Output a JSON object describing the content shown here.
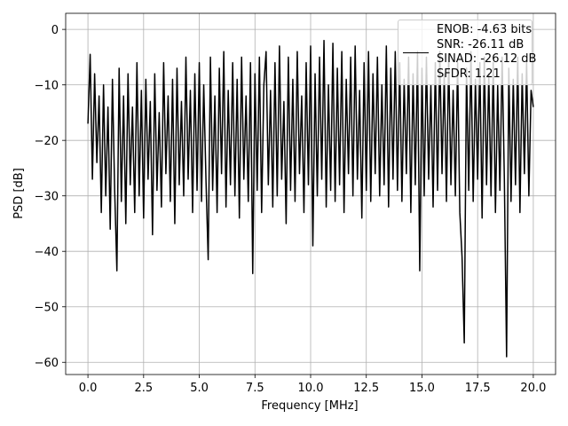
{
  "chart_data": {
    "type": "line",
    "x_label": "Frequency [MHz]",
    "y_label": "PSD [dB]",
    "xlim": [
      -1.0,
      21.0
    ],
    "ylim": [
      -62.2,
      2.9
    ],
    "xticks": [
      {
        "value": 0,
        "label": "0.0"
      },
      {
        "value": 2.5,
        "label": "2.5"
      },
      {
        "value": 5,
        "label": "5.0"
      },
      {
        "value": 7.5,
        "label": "7.5"
      },
      {
        "value": 10,
        "label": "10.0"
      },
      {
        "value": 12.5,
        "label": "12.5"
      },
      {
        "value": 15,
        "label": "15.0"
      },
      {
        "value": 17.5,
        "label": "17.5"
      },
      {
        "value": 20,
        "label": "20.0"
      }
    ],
    "yticks": [
      0,
      {
        "value": -10,
        "label": "−10"
      },
      {
        "value": -20,
        "label": "−20"
      },
      {
        "value": -30,
        "label": "−30"
      },
      {
        "value": -40,
        "label": "−40"
      },
      {
        "value": -50,
        "label": "−50"
      },
      {
        "value": -60,
        "label": "−60"
      }
    ],
    "grid": true,
    "legend": "upper right",
    "x": [
      0,
      0.1,
      0.2,
      0.3,
      0.4,
      0.5,
      0.6,
      0.7,
      0.8,
      0.9,
      1,
      1.1,
      1.2,
      1.3,
      1.4,
      1.5,
      1.6,
      1.7,
      1.8,
      1.9,
      2,
      2.1,
      2.2,
      2.3,
      2.4,
      2.5,
      2.6,
      2.7,
      2.8,
      2.9,
      3,
      3.1,
      3.2,
      3.3,
      3.4,
      3.5,
      3.6,
      3.7,
      3.8,
      3.9,
      4,
      4.1,
      4.2,
      4.3,
      4.4,
      4.5,
      4.6,
      4.7,
      4.8,
      4.9,
      5,
      5.1,
      5.2,
      5.3,
      5.4,
      5.5,
      5.6,
      5.7,
      5.8,
      5.9,
      6,
      6.1,
      6.2,
      6.3,
      6.4,
      6.5,
      6.6,
      6.7,
      6.8,
      6.9,
      7,
      7.1,
      7.2,
      7.3,
      7.4,
      7.5,
      7.6,
      7.7,
      7.8,
      7.9,
      8,
      8.1,
      8.2,
      8.3,
      8.4,
      8.5,
      8.6,
      8.7,
      8.8,
      8.9,
      9,
      9.1,
      9.2,
      9.3,
      9.4,
      9.5,
      9.6,
      9.7,
      9.8,
      9.9,
      10,
      10.1,
      10.2,
      10.3,
      10.4,
      10.5,
      10.6,
      10.7,
      10.8,
      10.9,
      11,
      11.1,
      11.2,
      11.3,
      11.4,
      11.5,
      11.6,
      11.7,
      11.8,
      11.9,
      12,
      12.1,
      12.2,
      12.3,
      12.4,
      12.5,
      12.6,
      12.7,
      12.8,
      12.9,
      13,
      13.1,
      13.2,
      13.3,
      13.4,
      13.5,
      13.6,
      13.7,
      13.8,
      13.9,
      14,
      14.1,
      14.2,
      14.3,
      14.4,
      14.5,
      14.6,
      14.7,
      14.8,
      14.9,
      15,
      15.1,
      15.2,
      15.3,
      15.4,
      15.5,
      15.6,
      15.7,
      15.8,
      15.9,
      16,
      16.1,
      16.2,
      16.3,
      16.4,
      16.5,
      16.6,
      16.7,
      16.8,
      16.9,
      17,
      17.1,
      17.2,
      17.3,
      17.4,
      17.5,
      17.6,
      17.7,
      17.8,
      17.9,
      18,
      18.1,
      18.2,
      18.3,
      18.4,
      18.5,
      18.6,
      18.7,
      18.8,
      18.9,
      19,
      19.1,
      19.2,
      19.3,
      19.4,
      19.5,
      19.6,
      19.7,
      19.8,
      19.9,
      20
    ],
    "series": [
      {
        "name": "ENOB: -4.63 bits\nSNR: -26.11 dB\nSINAD: -26.12 dB\nSFDR: 1.21",
        "color": "#000000",
        "values": [
          -17,
          -4.5,
          -27,
          -8,
          -24,
          -12,
          -33,
          -10,
          -30,
          -14,
          -36,
          -9,
          -29,
          -43.5,
          -7,
          -31,
          -12,
          -35,
          -8,
          -28,
          -14,
          -33,
          -6,
          -30,
          -11,
          -34,
          -9,
          -27,
          -13,
          -37,
          -8,
          -29,
          -15,
          -32,
          -6,
          -26,
          -12,
          -31,
          -9,
          -35,
          -7,
          -28,
          -13,
          -30,
          -5,
          -27,
          -11,
          -33,
          -8,
          -29,
          -6,
          -31,
          -10,
          -27,
          -41.5,
          -5,
          -29,
          -12,
          -33,
          -7,
          -26,
          -4,
          -32,
          -11,
          -28,
          -6,
          -30,
          -9,
          -34,
          -5,
          -27,
          -12,
          -31,
          -6,
          -44,
          -8,
          -29,
          -5,
          -33,
          -10,
          -4,
          -28,
          -11,
          -32,
          -6,
          -30,
          -3,
          -27,
          -13,
          -35,
          -5,
          -29,
          -9,
          -31,
          -4,
          -26,
          -12,
          -33,
          -6,
          -28,
          -3,
          -39,
          -8,
          -30,
          -5,
          -27,
          -2,
          -32,
          -10,
          -29,
          -2.5,
          -31,
          -7,
          -28,
          -4,
          -33,
          -9,
          -26,
          -5,
          -30,
          -3,
          -27,
          -11,
          -34,
          -6,
          -29,
          -4,
          -31,
          -8,
          -26,
          -5,
          -30,
          -10,
          -28,
          -3,
          -32,
          -7,
          -27,
          -4,
          -29,
          -6,
          -31,
          -9,
          -26,
          -5,
          -33,
          -8,
          -28,
          -4,
          -43.5,
          -7,
          -30,
          -5,
          -27,
          -10,
          -32,
          -6,
          -29,
          -4,
          -26,
          -8,
          -31,
          -5,
          -28,
          -11,
          -30,
          -6,
          -33,
          -41,
          -56.5,
          -7,
          -29,
          -4,
          -31,
          -9,
          -27,
          -6,
          -34,
          -5,
          -28,
          -8,
          -30,
          -6,
          -33,
          -10,
          -29,
          -5,
          -27,
          -59,
          -7,
          -31,
          -9,
          -28,
          -5,
          -33,
          -8,
          -26,
          -6,
          -30,
          -11,
          -14
        ]
      }
    ]
  }
}
